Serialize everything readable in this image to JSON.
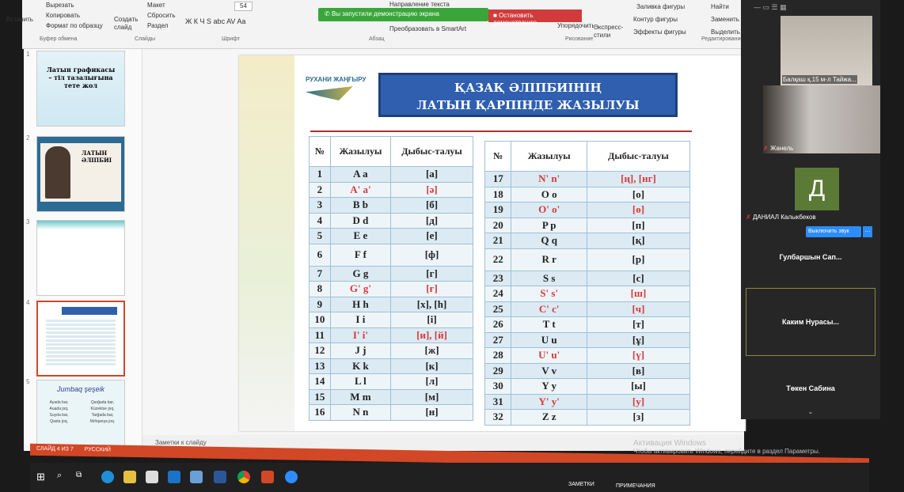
{
  "ribbon": {
    "clipboard": {
      "paste": "Вставить",
      "cut": "Вырезать",
      "copy": "Копировать",
      "format": "Формат по образцу",
      "group": "Буфер обмена"
    },
    "slides": {
      "new": "Создать слайд",
      "layout": "Макет",
      "reset": "Сбросить",
      "section": "Раздел",
      "group": "Слайды"
    },
    "font": {
      "size": "54",
      "group": "Шрифт",
      "buttons": "Ж К Ч S abc AV Aa"
    },
    "paragraph": {
      "direction": "Направление текста",
      "smartart": "Преобразовать в SmartArt",
      "group": "Абзац"
    },
    "drawing": {
      "arrange": "Упорядочить",
      "styles": "Экспресс-стили",
      "fill": "Заливка фигуры",
      "outline": "Контур фигуры",
      "effects": "Эффекты фигуры",
      "group": "Рисование"
    },
    "editing": {
      "find": "Найти",
      "replace": "Заменить",
      "select": "Выделить",
      "group": "Редактирование"
    }
  },
  "share": {
    "notice": "Вы запустили демонстрацию экрана",
    "stop": "Остановить демонстрацию"
  },
  "thumbnails": [
    {
      "num": "1",
      "text": "Латын графикасы – тіл тазалығына тете жол"
    },
    {
      "num": "2",
      "text": "ЛАТЫН ӘЛІПБИІ"
    },
    {
      "num": "3",
      "text": ""
    },
    {
      "num": "4",
      "text": ""
    },
    {
      "num": "5",
      "text": "Jumbaq şeşeik",
      "lines": [
        "Ayada bar,",
        "Auada joq,",
        "Suyda bar,",
        "Qasta joq,",
        "Qarğada bar,",
        "Küzektse joq,",
        "Tarğada bar,",
        "Mıňqanşa joq."
      ]
    }
  ],
  "slide": {
    "logo": "РУХАНИ ЖАҢҒЫРУ",
    "title_line1": "ҚАЗАҚ ӘЛІПБИІНІҢ",
    "title_line2": "ЛАТЫН ҚАРПІНДЕ ЖАЗЫЛУЫ",
    "headers": [
      "№",
      "Жазылуы",
      "Дыбыс-талуы"
    ],
    "accent": "#d83a3a",
    "rows": [
      [
        "1",
        "A a",
        "[а]",
        false
      ],
      [
        "2",
        "A' a'",
        "[ә]",
        true
      ],
      [
        "3",
        "B b",
        "[б]",
        false
      ],
      [
        "4",
        "D d",
        "[д]",
        false
      ],
      [
        "5",
        "E e",
        "[е]",
        false
      ],
      [
        "6",
        "F f",
        "[ф]",
        false
      ],
      [
        "7",
        "G g",
        "[г]",
        false
      ],
      [
        "8",
        "G' g'",
        "[ғ]",
        true
      ],
      [
        "9",
        "H h",
        "[х], [h]",
        false
      ],
      [
        "10",
        "I i",
        "[і]",
        false
      ],
      [
        "11",
        "I' i'",
        "[и], [й]",
        true
      ],
      [
        "12",
        "J j",
        "[ж]",
        false
      ],
      [
        "13",
        "K k",
        "[к]",
        false
      ],
      [
        "14",
        "L l",
        "[л]",
        false
      ],
      [
        "15",
        "M m",
        "[м]",
        false
      ],
      [
        "16",
        "N n",
        "[н]",
        false
      ],
      [
        "17",
        "N' n'",
        "[ң], [нг]",
        true
      ],
      [
        "18",
        "O o",
        "[о]",
        false
      ],
      [
        "19",
        "O' o'",
        "[ө]",
        true
      ],
      [
        "20",
        "P p",
        "[п]",
        false
      ],
      [
        "21",
        "Q q",
        "[қ]",
        false
      ],
      [
        "22",
        "R r",
        "[р]",
        false
      ],
      [
        "23",
        "S s",
        "[с]",
        false
      ],
      [
        "24",
        "S' s'",
        "[ш]",
        true
      ],
      [
        "25",
        "C' c'",
        "[ч]",
        true
      ],
      [
        "26",
        "T t",
        "[т]",
        false
      ],
      [
        "27",
        "U u",
        "[ұ]",
        false
      ],
      [
        "28",
        "U' u'",
        "[ү]",
        true
      ],
      [
        "29",
        "V v",
        "[в]",
        false
      ],
      [
        "30",
        "Y y",
        "[ы]",
        false
      ],
      [
        "31",
        "Y' y'",
        "[у]",
        true
      ],
      [
        "32",
        "Z z",
        "[з]",
        false
      ]
    ]
  },
  "notes_placeholder": "Заметки к слайду",
  "activation": {
    "title": "Активация Windows",
    "text": "Чтобы активировать Windows, перейдите в раздел Параметры."
  },
  "statusbar": {
    "slide": "СЛАЙД 4 ИЗ 7",
    "lang": "РУССКИЙ",
    "notes": "ЗАМЕТКИ",
    "comments": "ПРИМЕЧАНИЯ"
  },
  "zoom": {
    "participants": [
      {
        "name": "Балқаш қ.15 м-л Тайжа..."
      },
      {
        "name": "Жанель",
        "muted": true
      },
      {
        "name": "ДАНИАЛ Калыкбеков",
        "avatar": "Д",
        "muted": true,
        "avatar_color": "#5a7a36"
      },
      {
        "name": "Гулбаршын  Сап..."
      },
      {
        "name": "Каким  Нурасы..."
      },
      {
        "name": "Төкен Сабина"
      }
    ],
    "mute_button": "Выключить звук",
    "more": "..."
  }
}
